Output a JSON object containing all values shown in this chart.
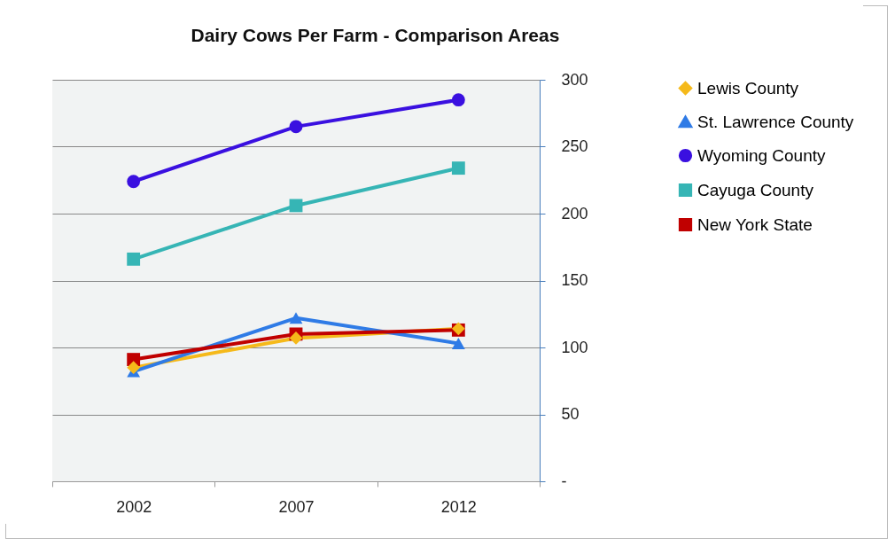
{
  "chart_data": {
    "type": "line",
    "title": "Dairy Cows Per Farm - Comparison Areas",
    "categories": [
      "2002",
      "2007",
      "2012"
    ],
    "series": [
      {
        "name": "Lewis County",
        "color": "#f5b91a",
        "marker": "diamond",
        "values": [
          85,
          107,
          114
        ]
      },
      {
        "name": "St. Lawrence County",
        "color": "#2f7be6",
        "marker": "triangle",
        "values": [
          82,
          122,
          103
        ]
      },
      {
        "name": "Wyoming County",
        "color": "#3a10e0",
        "marker": "circle",
        "values": [
          224,
          265,
          285
        ]
      },
      {
        "name": "Cayuga County",
        "color": "#36b5b5",
        "marker": "square",
        "values": [
          166,
          206,
          234
        ]
      },
      {
        "name": "New York State",
        "color": "#c00000",
        "marker": "square",
        "values": [
          91,
          110,
          113
        ]
      }
    ],
    "ylim": [
      0,
      300
    ],
    "yticks": [
      {
        "value": 0,
        "label": "-"
      },
      50,
      100,
      150,
      200,
      250,
      300
    ],
    "grid": "y",
    "legend": "right"
  }
}
